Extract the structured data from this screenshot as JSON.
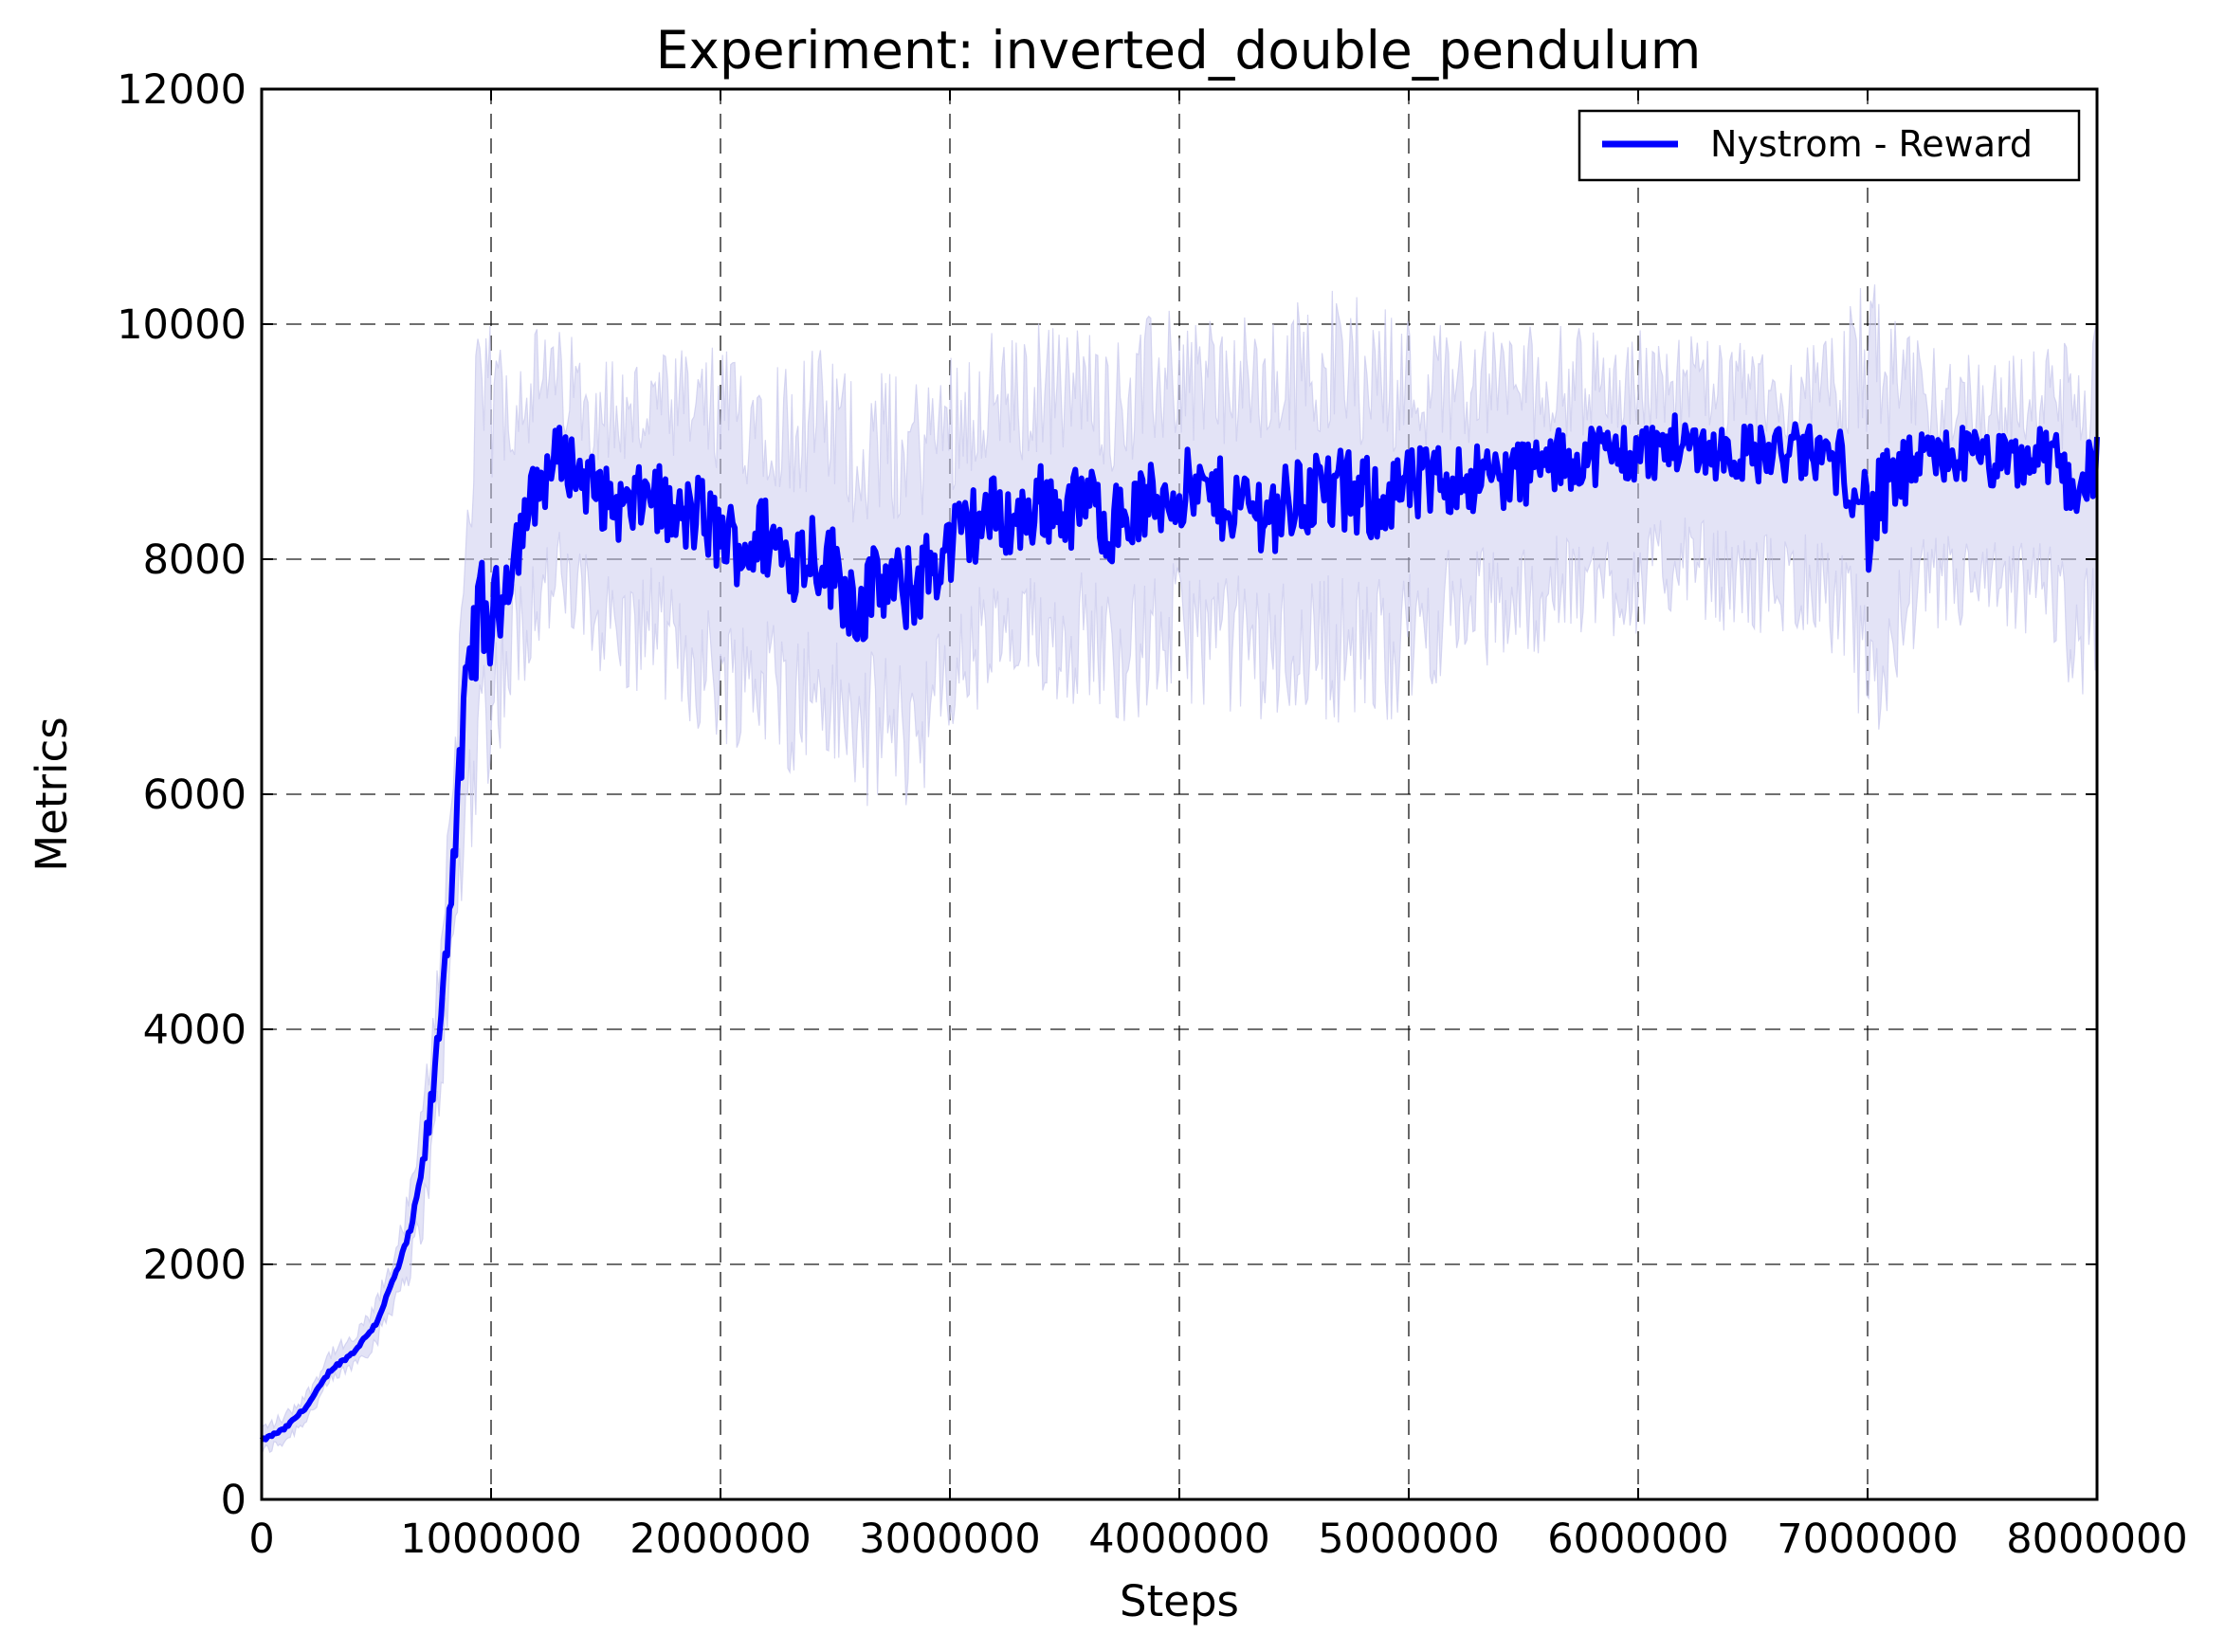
{
  "chart_data": {
    "type": "line",
    "title": "Experiment: inverted_double_pendulum",
    "xlabel": "Steps",
    "ylabel": "Metrics",
    "xlim": [
      0,
      8000000
    ],
    "ylim": [
      0,
      12000
    ],
    "xticks": [
      0,
      1000000,
      2000000,
      3000000,
      4000000,
      5000000,
      6000000,
      7000000,
      8000000
    ],
    "yticks": [
      0,
      2000,
      4000,
      6000,
      8000,
      10000,
      12000
    ],
    "xtick_labels": [
      "0",
      "1000000",
      "2000000",
      "3000000",
      "4000000",
      "5000000",
      "6000000",
      "7000000",
      "8000000"
    ],
    "ytick_labels": [
      "0",
      "2000",
      "4000",
      "6000",
      "8000",
      "10000",
      "12000"
    ],
    "grid": true,
    "legend": {
      "position": "top-right"
    },
    "series": [
      {
        "name": "Nystrom - Reward",
        "color": "#0000ff",
        "band_color": "#ccccee",
        "x": [
          0,
          100000,
          200000,
          300000,
          400000,
          500000,
          600000,
          650000,
          700000,
          750000,
          800000,
          850000,
          900000,
          950000,
          1000000,
          1100000,
          1200000,
          1300000,
          1400000,
          1500000,
          1600000,
          1700000,
          1800000,
          1900000,
          2000000,
          2100000,
          2200000,
          2300000,
          2400000,
          2500000,
          2600000,
          2700000,
          2800000,
          2900000,
          3000000,
          3100000,
          3200000,
          3300000,
          3400000,
          3500000,
          3600000,
          3700000,
          3800000,
          3900000,
          4000000,
          4200000,
          4400000,
          4600000,
          4800000,
          5000000,
          5200000,
          5400000,
          5600000,
          5800000,
          6000000,
          6200000,
          6400000,
          6600000,
          6800000,
          6950000,
          7000000,
          7100000,
          7200000,
          7400000,
          7600000,
          7800000,
          7900000,
          8000000
        ],
        "values": [
          500,
          600,
          800,
          1100,
          1250,
          1500,
          2000,
          2300,
          2800,
          3500,
          4600,
          5800,
          7000,
          7600,
          7400,
          8100,
          8600,
          8900,
          8700,
          8500,
          8400,
          8600,
          8300,
          8400,
          8200,
          8100,
          8200,
          8000,
          8100,
          7900,
          7600,
          7800,
          7700,
          7900,
          8100,
          8300,
          8400,
          8300,
          8500,
          8400,
          8500,
          8300,
          8400,
          8500,
          8600,
          8500,
          8400,
          8600,
          8500,
          8600,
          8700,
          8700,
          8800,
          8900,
          8900,
          9000,
          8900,
          8900,
          8900,
          8700,
          8300,
          8600,
          8800,
          8900,
          8800,
          8900,
          8600,
          8800
        ],
        "lower": [
          400,
          500,
          700,
          1000,
          1150,
          1350,
          1800,
          2000,
          2400,
          3000,
          4000,
          5000,
          6000,
          6600,
          6800,
          7300,
          7700,
          7800,
          7600,
          7500,
          7300,
          7500,
          7200,
          7100,
          7000,
          7000,
          7000,
          6800,
          6900,
          6700,
          6500,
          6600,
          6500,
          6700,
          6900,
          7200,
          7300,
          7200,
          7400,
          7300,
          7400,
          7200,
          7200,
          7300,
          7400,
          7300,
          7200,
          7300,
          7200,
          7300,
          7600,
          7600,
          7700,
          7800,
          7800,
          8000,
          7800,
          7800,
          7800,
          7300,
          6700,
          7300,
          7700,
          7800,
          7700,
          7800,
          7300,
          7500
        ],
        "upper": [
          600,
          700,
          900,
          1250,
          1350,
          1650,
          2200,
          2600,
          3200,
          4000,
          5200,
          6600,
          8500,
          9300,
          9300,
          9400,
          9500,
          9500,
          9400,
          9300,
          9200,
          9300,
          9200,
          9300,
          9200,
          9200,
          9300,
          9100,
          9200,
          9100,
          8900,
          9000,
          8900,
          9000,
          9200,
          9300,
          9400,
          9300,
          9500,
          9400,
          9500,
          9300,
          9400,
          9500,
          9600,
          9500,
          9400,
          9700,
          9600,
          9500,
          9500,
          9500,
          9500,
          9500,
          9500,
          9500,
          9400,
          9400,
          9400,
          9600,
          9800,
          9500,
          9400,
          9400,
          9300,
          9400,
          9300,
          9500
        ]
      }
    ]
  }
}
